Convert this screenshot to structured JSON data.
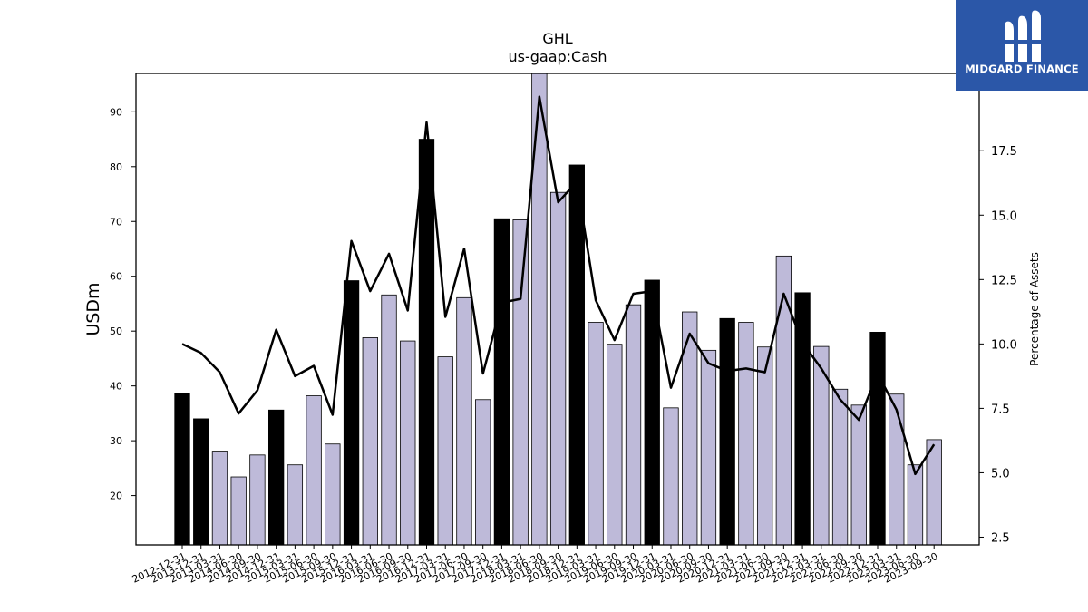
{
  "chart_data": {
    "type": "bar",
    "title": "GHL",
    "subtitle": "us-gaap:Cash",
    "ylabel": "USDm",
    "y2label": "Percentage of Assets",
    "ylim": [
      11,
      97
    ],
    "y2lim": [
      2.2,
      20.5
    ],
    "yticks": [
      "20",
      "30",
      "40",
      "50",
      "60",
      "70",
      "80",
      "90"
    ],
    "y2ticks": [
      "2.5",
      "5.0",
      "7.5",
      "10.0",
      "12.5",
      "15.0",
      "17.5"
    ],
    "categories": [
      "2012-12-31",
      "2013-12-31",
      "2014-03-31",
      "2014-06-30",
      "2014-09-30",
      "2014-12-31",
      "2015-03-31",
      "2015-06-30",
      "2015-09-30",
      "2015-12-31",
      "2016-03-31",
      "2016-06-30",
      "2016-09-30",
      "2016-12-31",
      "2017-03-31",
      "2017-06-30",
      "2017-09-30",
      "2017-12-31",
      "2018-03-31",
      "2018-06-30",
      "2018-09-30",
      "2018-12-31",
      "2019-03-31",
      "2019-06-30",
      "2019-09-30",
      "2019-12-31",
      "2020-03-31",
      "2020-06-30",
      "2020-09-30",
      "2020-12-31",
      "2021-03-31",
      "2021-06-30",
      "2021-09-30",
      "2021-12-31",
      "2022-03-31",
      "2022-06-30",
      "2022-09-30",
      "2022-12-31",
      "2023-03-31",
      "2023-06-30",
      "2023-09-30"
    ],
    "series": [
      {
        "kind": "bar",
        "values": [
          38.7,
          34.0,
          28.1,
          23.4,
          27.4,
          35.6,
          25.6,
          38.2,
          29.4,
          59.2,
          48.8,
          56.6,
          48.2,
          85.0,
          45.3,
          56.1,
          37.5,
          70.5,
          70.3,
          98.0,
          75.3,
          80.3,
          51.6,
          47.6,
          54.8,
          59.3,
          36.0,
          53.5,
          46.5,
          52.3,
          51.6,
          47.1,
          63.7,
          57.0,
          47.2,
          39.4,
          36.5,
          49.8,
          38.5,
          25.6,
          30.2
        ],
        "highlight": [
          true,
          true,
          false,
          false,
          false,
          true,
          false,
          false,
          false,
          true,
          false,
          false,
          false,
          true,
          false,
          false,
          false,
          true,
          false,
          false,
          false,
          true,
          false,
          false,
          false,
          true,
          false,
          false,
          false,
          true,
          false,
          false,
          false,
          true,
          false,
          false,
          false,
          true,
          false,
          false,
          false
        ]
      },
      {
        "kind": "line",
        "axis": "right",
        "values": [
          10.0,
          9.65,
          8.9,
          7.3,
          8.2,
          10.55,
          8.75,
          9.15,
          7.25,
          14.0,
          12.05,
          13.5,
          11.3,
          18.6,
          11.05,
          13.7,
          8.85,
          11.6,
          11.75,
          19.6,
          15.5,
          16.3,
          11.7,
          10.15,
          11.95,
          12.05,
          8.3,
          10.4,
          9.25,
          8.95,
          9.05,
          8.9,
          11.95,
          10.05,
          9.05,
          7.85,
          7.05,
          8.85,
          7.45,
          4.95,
          6.1
        ]
      }
    ],
    "colors": {
      "bar": "#bebad9",
      "highlight_bar": "#000000",
      "line": "#000000",
      "bar_edge": "#000000"
    }
  },
  "logo": {
    "text": "MIDGARD FINANCE",
    "color": "#2b57a8"
  }
}
